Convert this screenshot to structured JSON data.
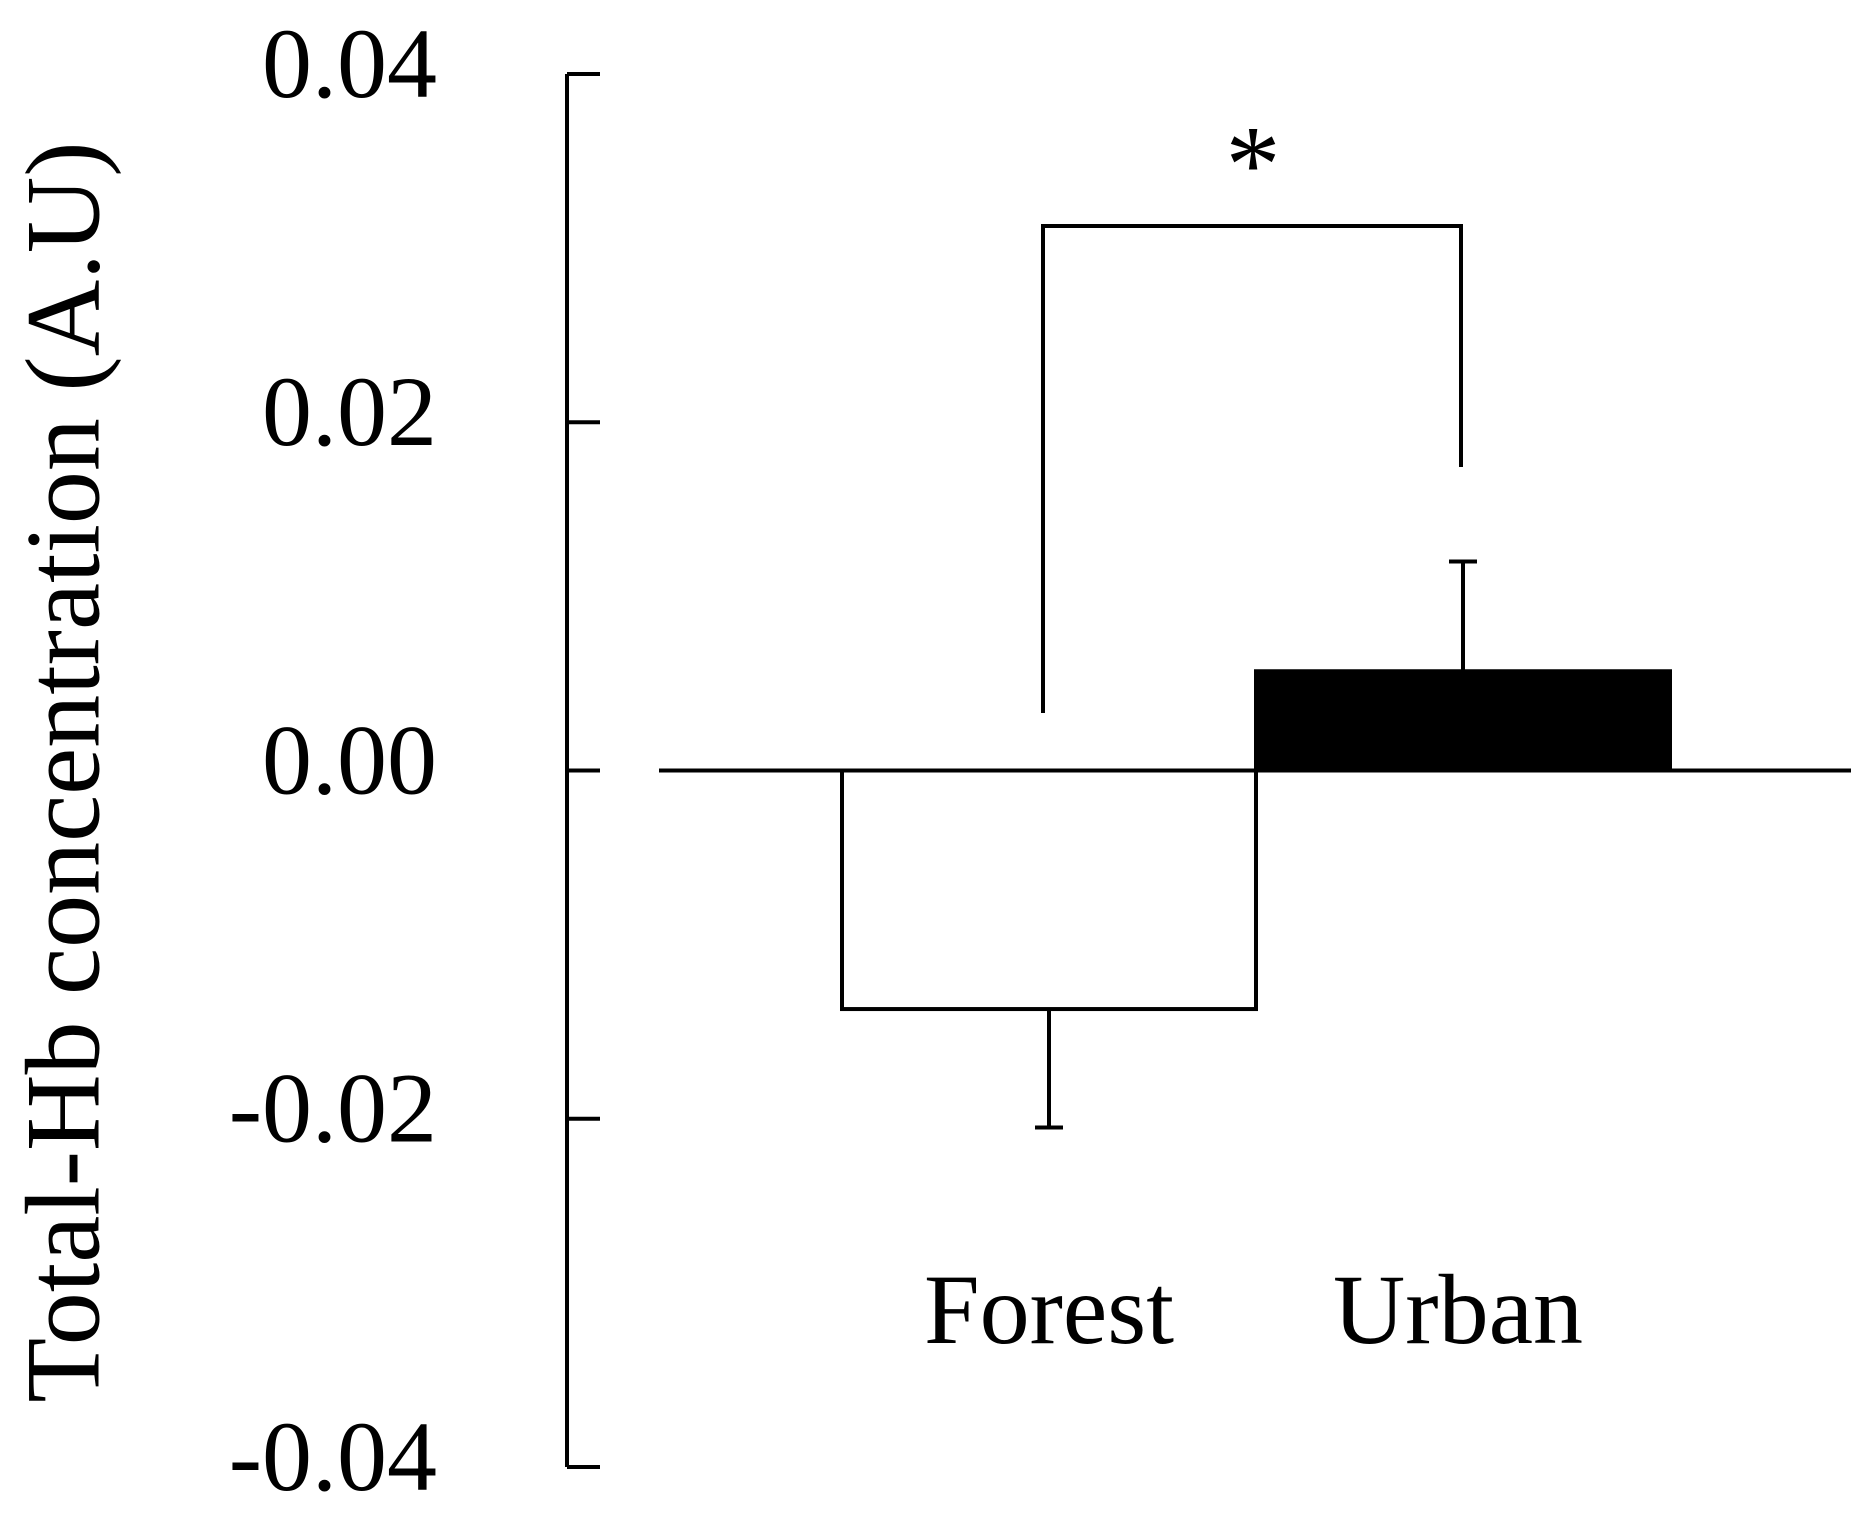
{
  "chart_data": {
    "type": "bar",
    "y_label": "Total-Hb concentration (A.U)",
    "categories": [
      "Forest",
      "Urban"
    ],
    "values": [
      -0.0137,
      0.0057
    ],
    "errors": [
      0.0068,
      0.0063
    ],
    "colors": [
      "#ffffff",
      "#000000"
    ],
    "ylim": [
      -0.04,
      0.04
    ],
    "yticks": [
      -0.04,
      -0.02,
      {
        "value": 0,
        "label": "0.00"
      },
      0.02,
      0.04
    ],
    "annotation": "*"
  }
}
